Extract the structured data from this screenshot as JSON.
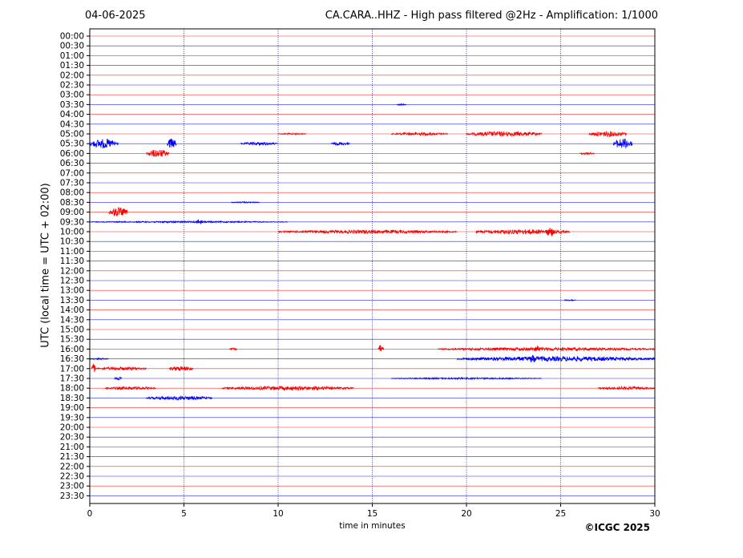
{
  "header": {
    "date": "04-06-2025",
    "title": "CA.CARA..HHZ - High pass filtered @2Hz - Amplification: 1/1000"
  },
  "footer": {
    "copyright": "©ICGC 2025"
  },
  "colors": {
    "trace_even": "#ff0000",
    "trace_odd": "#0000ff",
    "grid": "#000080"
  },
  "chart_data": {
    "type": "line",
    "title": "CA.CARA..HHZ - High pass filtered @2Hz - Amplification: 1/1000",
    "xlabel": "time in minutes",
    "ylabel": "UTC (local time = UTC + 02:00)",
    "xlim": [
      0,
      30
    ],
    "x_ticks": [
      0,
      5,
      10,
      15,
      20,
      25,
      30
    ],
    "vertical_gridlines": [
      5,
      10,
      15,
      20,
      25
    ],
    "rows": [
      "00:00",
      "00:30",
      "01:00",
      "01:30",
      "02:00",
      "02:30",
      "03:00",
      "03:30",
      "04:00",
      "04:30",
      "05:00",
      "05:30",
      "06:00",
      "06:30",
      "07:00",
      "07:30",
      "08:00",
      "08:30",
      "09:00",
      "09:30",
      "10:00",
      "10:30",
      "11:00",
      "11:30",
      "12:00",
      "12:30",
      "13:00",
      "13:30",
      "14:00",
      "14:30",
      "15:00",
      "15:30",
      "16:00",
      "16:30",
      "17:00",
      "17:30",
      "18:00",
      "18:30",
      "19:00",
      "19:30",
      "20:00",
      "20:30",
      "21:00",
      "21:30",
      "22:00",
      "22:30",
      "23:00",
      "23:30"
    ],
    "row_colors": "alternating red (even rows) / blue (odd rows)",
    "events": [
      {
        "row": "03:30",
        "start": 16.3,
        "end": 16.8,
        "amplitude": 1.2
      },
      {
        "row": "05:00",
        "start": 10.0,
        "end": 11.5,
        "amplitude": 1.0
      },
      {
        "row": "05:00",
        "start": 16.0,
        "end": 19.0,
        "amplitude": 2.0
      },
      {
        "row": "05:00",
        "start": 20.0,
        "end": 24.0,
        "amplitude": 3.0
      },
      {
        "row": "05:00",
        "start": 26.5,
        "end": 28.5,
        "amplitude": 3.5
      },
      {
        "row": "05:30",
        "start": 0.0,
        "end": 1.5,
        "amplitude": 6.0
      },
      {
        "row": "05:30",
        "start": 4.1,
        "end": 4.6,
        "amplitude": 6.5
      },
      {
        "row": "05:30",
        "start": 8.0,
        "end": 10.0,
        "amplitude": 2.0
      },
      {
        "row": "05:30",
        "start": 12.8,
        "end": 13.8,
        "amplitude": 2.0
      },
      {
        "row": "05:30",
        "start": 27.8,
        "end": 28.8,
        "amplitude": 6.5
      },
      {
        "row": "06:00",
        "start": 3.0,
        "end": 4.2,
        "amplitude": 5.0
      },
      {
        "row": "06:00",
        "start": 26.0,
        "end": 26.8,
        "amplitude": 1.5
      },
      {
        "row": "08:30",
        "start": 7.5,
        "end": 9.0,
        "amplitude": 0.8
      },
      {
        "row": "09:00",
        "start": 1.0,
        "end": 2.0,
        "amplitude": 6.0
      },
      {
        "row": "09:30",
        "start": 0.0,
        "end": 10.5,
        "amplitude": 1.0
      },
      {
        "row": "09:30",
        "start": 5.6,
        "end": 6.0,
        "amplitude": 3.5
      },
      {
        "row": "10:00",
        "start": 10.0,
        "end": 19.5,
        "amplitude": 2.2
      },
      {
        "row": "10:00",
        "start": 20.5,
        "end": 25.5,
        "amplitude": 3.0
      },
      {
        "row": "10:00",
        "start": 24.2,
        "end": 24.7,
        "amplitude": 6.0
      },
      {
        "row": "13:30",
        "start": 25.2,
        "end": 25.8,
        "amplitude": 1.0
      },
      {
        "row": "16:00",
        "start": 7.4,
        "end": 7.8,
        "amplitude": 1.5
      },
      {
        "row": "16:00",
        "start": 15.3,
        "end": 15.6,
        "amplitude": 5.0
      },
      {
        "row": "16:00",
        "start": 18.5,
        "end": 30.0,
        "amplitude": 2.0
      },
      {
        "row": "16:00",
        "start": 23.6,
        "end": 23.9,
        "amplitude": 4.0
      },
      {
        "row": "16:30",
        "start": 0.0,
        "end": 1.0,
        "amplitude": 1.0
      },
      {
        "row": "16:30",
        "start": 19.5,
        "end": 30.0,
        "amplitude": 3.0
      },
      {
        "row": "16:30",
        "start": 23.3,
        "end": 23.7,
        "amplitude": 5.0
      },
      {
        "row": "17:00",
        "start": 0.1,
        "end": 0.3,
        "amplitude": 7.0
      },
      {
        "row": "17:00",
        "start": 0.3,
        "end": 3.0,
        "amplitude": 2.0
      },
      {
        "row": "17:00",
        "start": 4.2,
        "end": 5.5,
        "amplitude": 3.0
      },
      {
        "row": "17:30",
        "start": 1.3,
        "end": 1.7,
        "amplitude": 2.0
      },
      {
        "row": "17:30",
        "start": 16.0,
        "end": 24.0,
        "amplitude": 1.0
      },
      {
        "row": "18:00",
        "start": 0.8,
        "end": 3.5,
        "amplitude": 2.0
      },
      {
        "row": "18:00",
        "start": 7.0,
        "end": 14.0,
        "amplitude": 2.5
      },
      {
        "row": "18:00",
        "start": 27.0,
        "end": 30.0,
        "amplitude": 2.0
      },
      {
        "row": "18:30",
        "start": 3.0,
        "end": 6.5,
        "amplitude": 2.5
      }
    ]
  }
}
